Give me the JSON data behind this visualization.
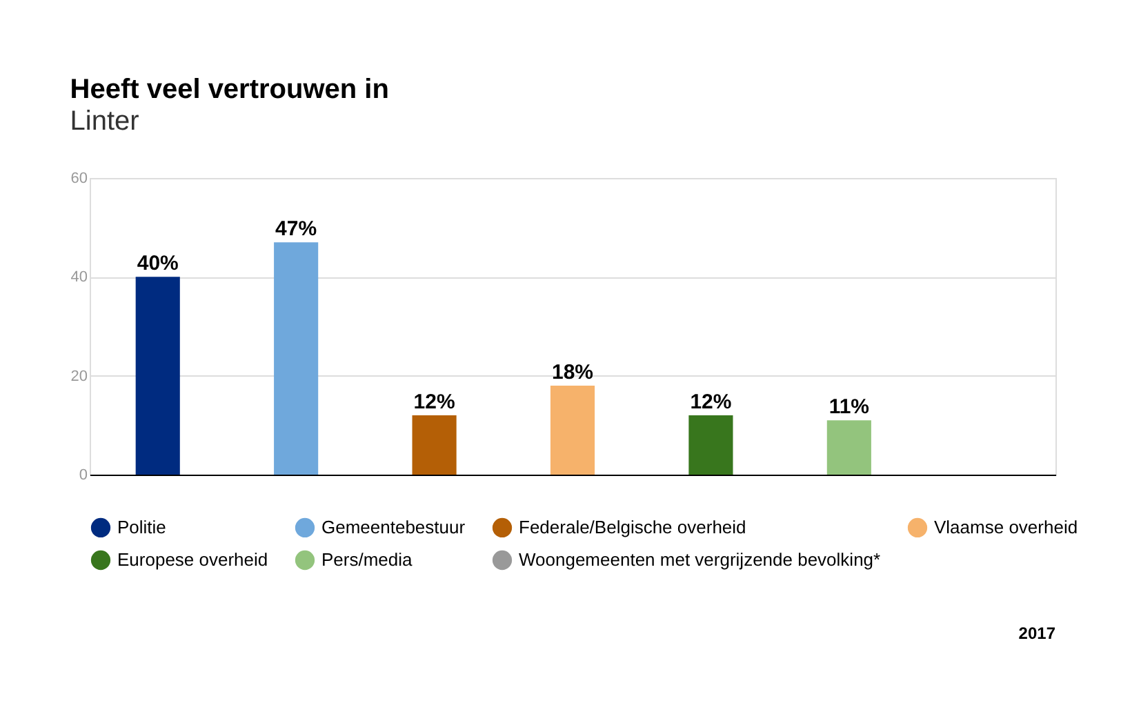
{
  "chart_data": {
    "type": "bar",
    "title": "Heeft veel vertrouwen in",
    "subtitle": "Linter",
    "categories": [
      null
    ],
    "series": [
      {
        "name": "Politie",
        "color": "#002b80",
        "values": [
          40
        ],
        "value_labels": [
          "40%"
        ]
      },
      {
        "name": "Gemeentebestuur",
        "color": "#6fa8dc",
        "values": [
          47
        ],
        "value_labels": [
          "47%"
        ]
      },
      {
        "name": "Federale/Belgische overheid",
        "color": "#b45f06",
        "values": [
          12
        ],
        "value_labels": [
          "12%"
        ]
      },
      {
        "name": "Vlaamse overheid",
        "color": "#f6b26b",
        "values": [
          18
        ],
        "value_labels": [
          "18%"
        ]
      },
      {
        "name": "Europese overheid",
        "color": "#38761d",
        "values": [
          12
        ],
        "value_labels": [
          "12%"
        ]
      },
      {
        "name": "Pers/media",
        "color": "#93c47d",
        "values": [
          11
        ],
        "value_labels": [
          "11%"
        ]
      },
      {
        "name": "Woongemeenten met vergrijzende bevolking*",
        "color": "#999999",
        "values": [
          null
        ],
        "value_labels": [
          null
        ]
      }
    ],
    "ylim": [
      0,
      60
    ],
    "yticks": [
      0,
      20,
      40,
      60
    ],
    "grid": "y",
    "legend": "bottom",
    "tick_labels": "y",
    "annotations": [
      "2017"
    ]
  }
}
